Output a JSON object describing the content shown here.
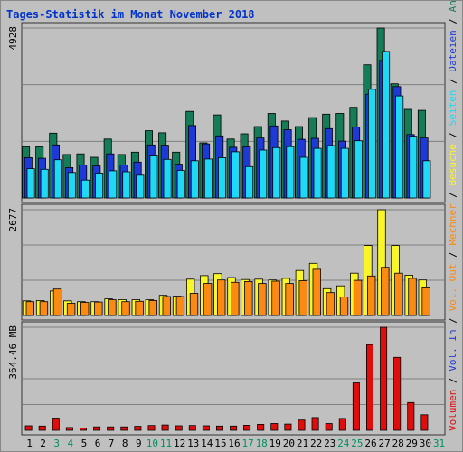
{
  "title": "Tages-Statistik im Monat November 2018",
  "colors": {
    "anfragen": "#167c57",
    "dateien": "#1e3ad6",
    "seiten": "#1fd8f6",
    "besuche": "#f8f628",
    "rechner": "#fb8a14",
    "volumen": "#e00d0d",
    "weekend_label": "#009060"
  },
  "chart_data": [
    {
      "type": "bar",
      "panel": "top",
      "ymax_label": "4928",
      "ymax": 4928,
      "categories": [
        "1",
        "2",
        "3",
        "4",
        "5",
        "6",
        "7",
        "8",
        "9",
        "10",
        "11",
        "12",
        "13",
        "14",
        "15",
        "16",
        "17",
        "18",
        "19",
        "20",
        "21",
        "22",
        "23",
        "24",
        "25",
        "26",
        "27",
        "28",
        "29",
        "30",
        "31"
      ],
      "series": [
        {
          "name": "Anfragen",
          "values": [
            1480,
            1480,
            1880,
            1260,
            1280,
            1180,
            1710,
            1260,
            1330,
            1950,
            1890,
            1330,
            2510,
            1600,
            2410,
            1710,
            1860,
            2070,
            2450,
            2230,
            2070,
            2330,
            2430,
            2450,
            2630,
            3860,
            4928,
            3310,
            2570,
            2540,
            null
          ]
        },
        {
          "name": "Dateien",
          "values": [
            1170,
            1150,
            1540,
            880,
            960,
            930,
            1280,
            960,
            1040,
            1540,
            1530,
            980,
            2100,
            1570,
            1800,
            1470,
            1480,
            1740,
            2090,
            1980,
            1700,
            1730,
            2010,
            1650,
            2060,
            3010,
            3990,
            3230,
            1840,
            1740,
            null
          ]
        },
        {
          "name": "Seiten",
          "values": [
            850,
            830,
            1110,
            740,
            520,
            720,
            790,
            760,
            660,
            1220,
            1120,
            800,
            1080,
            1130,
            1170,
            1340,
            910,
            1390,
            1460,
            1490,
            1180,
            1440,
            1520,
            1440,
            1660,
            3150,
            4250,
            2960,
            1790,
            1080,
            null
          ]
        }
      ],
      "legend": [
        "Anfragen",
        "Dateien",
        "Seiten"
      ]
    },
    {
      "type": "bar",
      "panel": "middle",
      "ymax_label": "2677",
      "ymax": 2677,
      "series": [
        {
          "name": "Besuche",
          "values": [
            370,
            380,
            620,
            370,
            350,
            350,
            420,
            400,
            400,
            400,
            510,
            490,
            920,
            1010,
            1060,
            960,
            910,
            920,
            900,
            940,
            1140,
            1320,
            680,
            750,
            1070,
            1770,
            2677,
            1770,
            1020,
            900,
            null
          ]
        },
        {
          "name": "Rechner",
          "values": [
            350,
            350,
            670,
            310,
            330,
            340,
            400,
            350,
            360,
            380,
            480,
            480,
            560,
            810,
            900,
            840,
            860,
            810,
            870,
            810,
            880,
            1170,
            580,
            470,
            890,
            1000,
            1220,
            1070,
            940,
            700,
            null
          ]
        }
      ],
      "legend": [
        "Besuche",
        "Rechner"
      ]
    },
    {
      "type": "bar",
      "panel": "bottom",
      "ymax_label": "364.46 MB",
      "ymax": 364.46,
      "series": [
        {
          "name": "Volumen",
          "values": [
            16,
            15,
            43,
            10,
            8,
            12,
            12,
            12,
            14,
            17,
            19,
            16,
            17,
            16,
            15,
            15,
            18,
            21,
            24,
            22,
            36,
            45,
            24,
            42,
            168,
            303,
            364.46,
            258,
            98,
            55,
            null
          ]
        }
      ],
      "legend": [
        "Vol. Out",
        "Vol. In",
        "Volumen"
      ]
    }
  ],
  "x_labels": [
    {
      "text": "1",
      "weekend": false
    },
    {
      "text": "2",
      "weekend": false
    },
    {
      "text": "3",
      "weekend": true
    },
    {
      "text": "4",
      "weekend": true
    },
    {
      "text": "5",
      "weekend": false
    },
    {
      "text": "6",
      "weekend": false
    },
    {
      "text": "7",
      "weekend": false
    },
    {
      "text": "8",
      "weekend": false
    },
    {
      "text": "9",
      "weekend": false
    },
    {
      "text": "10",
      "weekend": true
    },
    {
      "text": "11",
      "weekend": true
    },
    {
      "text": "12",
      "weekend": false
    },
    {
      "text": "13",
      "weekend": false
    },
    {
      "text": "14",
      "weekend": false
    },
    {
      "text": "15",
      "weekend": false
    },
    {
      "text": "16",
      "weekend": false
    },
    {
      "text": "17",
      "weekend": true
    },
    {
      "text": "18",
      "weekend": true
    },
    {
      "text": "19",
      "weekend": false
    },
    {
      "text": "20",
      "weekend": false
    },
    {
      "text": "21",
      "weekend": false
    },
    {
      "text": "22",
      "weekend": false
    },
    {
      "text": "23",
      "weekend": false
    },
    {
      "text": "24",
      "weekend": true
    },
    {
      "text": "25",
      "weekend": true
    },
    {
      "text": "26",
      "weekend": false
    },
    {
      "text": "27",
      "weekend": false
    },
    {
      "text": "28",
      "weekend": false
    },
    {
      "text": "29",
      "weekend": false
    },
    {
      "text": "30",
      "weekend": false
    },
    {
      "text": "31",
      "weekend": true
    }
  ],
  "right_legend": [
    {
      "text": "Anfragen",
      "color": "#167c57"
    },
    {
      "text": "/",
      "color": "#000000"
    },
    {
      "text": "Dateien",
      "color": "#1e3ad6"
    },
    {
      "text": "/",
      "color": "#000000"
    },
    {
      "text": "Seiten",
      "color": "#1fd8f6"
    },
    {
      "text": "/",
      "color": "#000000"
    },
    {
      "text": "Besuche",
      "color": "#f8f628"
    },
    {
      "text": "/",
      "color": "#000000"
    },
    {
      "text": "Rechner",
      "color": "#fb8a14"
    },
    {
      "text": "/",
      "color": "#000000"
    },
    {
      "text": "Vol. Out",
      "color": "#fb8a14"
    },
    {
      "text": "/",
      "color": "#000000"
    },
    {
      "text": "Vol. In",
      "color": "#1e3ad6"
    },
    {
      "text": "/",
      "color": "#000000"
    },
    {
      "text": "Volumen",
      "color": "#e00d0d"
    }
  ]
}
